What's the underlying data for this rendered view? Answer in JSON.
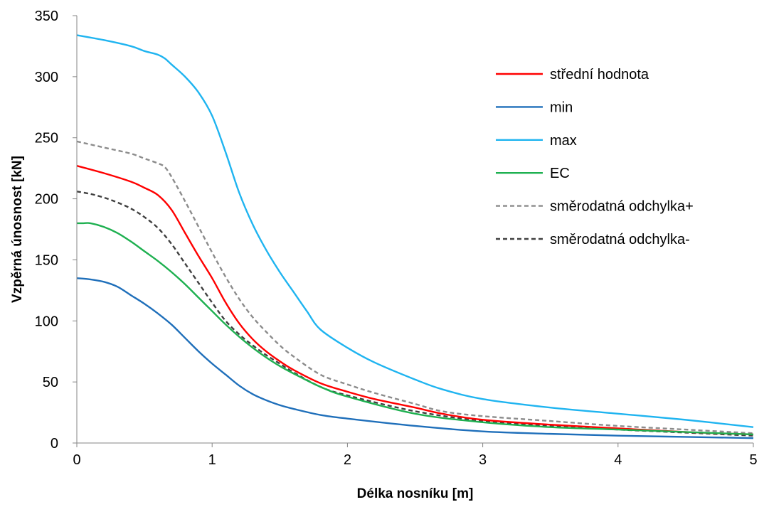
{
  "chart_data": {
    "type": "line",
    "xlabel": "Délka nosníku [m]",
    "ylabel": "Vzpěrná únosnost [kN]",
    "xlim": [
      0,
      5
    ],
    "ylim": [
      0,
      350
    ],
    "x_ticks": [
      0,
      1,
      2,
      3,
      4,
      5
    ],
    "y_ticks": [
      0,
      50,
      100,
      150,
      200,
      250,
      300,
      350
    ],
    "grid": false,
    "legend_position": "right",
    "series": [
      {
        "name": "střední hodnota",
        "color": "#ff0000",
        "dash": "solid",
        "x": [
          0,
          0.2,
          0.4,
          0.5,
          0.6,
          0.7,
          0.8,
          0.9,
          1.0,
          1.1,
          1.2,
          1.3,
          1.4,
          1.5,
          1.6,
          1.8,
          2.0,
          2.2,
          2.5,
          2.7,
          3.0,
          3.5,
          4.0,
          4.5,
          5.0
        ],
        "values": [
          227,
          221,
          214,
          209,
          203,
          191,
          172,
          153,
          135,
          115,
          98,
          85,
          75,
          67,
          60,
          49,
          42,
          36,
          29,
          24,
          19,
          15,
          12,
          9,
          7
        ]
      },
      {
        "name": "min",
        "color": "#1f6fba",
        "dash": "solid",
        "x": [
          0,
          0.1,
          0.2,
          0.3,
          0.4,
          0.5,
          0.6,
          0.7,
          0.8,
          0.9,
          1.0,
          1.1,
          1.2,
          1.3,
          1.4,
          1.5,
          1.6,
          1.8,
          2.0,
          2.5,
          3.0,
          3.5,
          4.0,
          4.5,
          5.0
        ],
        "values": [
          135,
          134,
          132,
          128,
          121,
          114,
          106,
          97,
          86,
          75,
          65,
          56,
          47,
          40,
          35,
          31,
          28,
          23,
          20,
          14,
          9.5,
          7.5,
          6,
          5,
          4
        ]
      },
      {
        "name": "max",
        "color": "#1fb4f0",
        "dash": "solid",
        "x": [
          0,
          0.2,
          0.4,
          0.5,
          0.6,
          0.65,
          0.7,
          0.8,
          0.9,
          1.0,
          1.1,
          1.2,
          1.3,
          1.4,
          1.5,
          1.6,
          1.7,
          1.8,
          2.0,
          2.2,
          2.5,
          2.7,
          3.0,
          3.5,
          4.0,
          4.5,
          5.0
        ],
        "values": [
          334,
          330,
          325,
          321,
          318,
          315,
          310,
          300,
          287,
          268,
          238,
          205,
          179,
          158,
          140,
          124,
          108,
          93,
          78,
          66,
          52,
          44,
          36,
          29,
          24,
          19,
          13
        ]
      },
      {
        "name": "EC",
        "color": "#1eb050",
        "dash": "solid",
        "x": [
          0,
          0.05,
          0.1,
          0.2,
          0.3,
          0.4,
          0.5,
          0.6,
          0.7,
          0.8,
          0.9,
          1.0,
          1.1,
          1.2,
          1.3,
          1.4,
          1.5,
          1.6,
          1.8,
          2.0,
          2.5,
          3.0,
          3.5,
          4.0,
          4.5,
          5.0
        ],
        "values": [
          180,
          180,
          180,
          177,
          172,
          165,
          157,
          149,
          140,
          130,
          119,
          108,
          97,
          87,
          78,
          70,
          63,
          57,
          46,
          38,
          24,
          17,
          13,
          11,
          9,
          7
        ]
      },
      {
        "name": "směrodatná odchylka+",
        "color": "#8c8c8c",
        "dash": "dashed",
        "x": [
          0,
          0.2,
          0.4,
          0.5,
          0.6,
          0.65,
          0.7,
          0.8,
          0.9,
          1.0,
          1.1,
          1.2,
          1.3,
          1.4,
          1.5,
          1.6,
          1.8,
          2.0,
          2.2,
          2.5,
          2.7,
          3.0,
          3.5,
          4.0,
          4.5,
          5.0
        ],
        "values": [
          247,
          242,
          237,
          233,
          229,
          226,
          218,
          198,
          177,
          156,
          136,
          118,
          103,
          91,
          80,
          71,
          56,
          48,
          41,
          32,
          26,
          22,
          18,
          14,
          11,
          8
        ]
      },
      {
        "name": "směrodatná odchylka-",
        "color": "#404040",
        "dash": "dashed",
        "x": [
          0,
          0.1,
          0.2,
          0.3,
          0.4,
          0.5,
          0.6,
          0.7,
          0.8,
          0.9,
          1.0,
          1.1,
          1.2,
          1.3,
          1.4,
          1.5,
          1.6,
          1.8,
          2.0,
          2.5,
          3.0,
          3.5,
          4.0,
          4.5,
          5.0
        ],
        "values": [
          206,
          204,
          201,
          197,
          192,
          185,
          176,
          163,
          147,
          131,
          115,
          100,
          89,
          80,
          72,
          65,
          58,
          46,
          39,
          26,
          18,
          14,
          11,
          8.5,
          6
        ]
      }
    ]
  }
}
